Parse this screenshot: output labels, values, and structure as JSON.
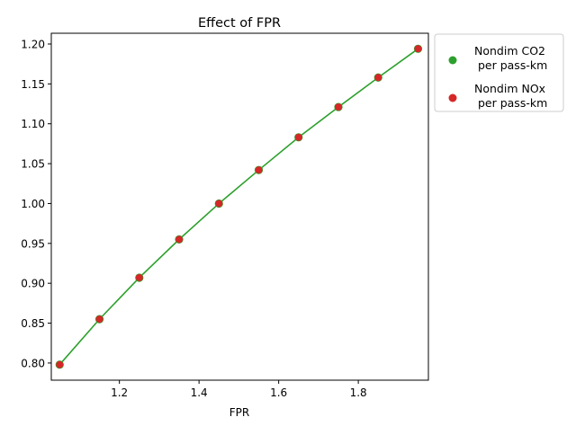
{
  "chart_data": {
    "type": "line",
    "title": "Effect of FPR",
    "xlabel": "FPR",
    "ylabel": "",
    "xlim": [
      1.029,
      1.976
    ],
    "ylim": [
      0.7785,
      1.2135
    ],
    "xticks": [
      1.2,
      1.4,
      1.6,
      1.8
    ],
    "xtick_labels": [
      "1.2",
      "1.4",
      "1.6",
      "1.8"
    ],
    "yticks": [
      0.8,
      0.85,
      0.9,
      0.95,
      1.0,
      1.05,
      1.1,
      1.15,
      1.2
    ],
    "ytick_labels": [
      "0.80",
      "0.85",
      "0.90",
      "0.95",
      "1.00",
      "1.05",
      "1.10",
      "1.15",
      "1.20"
    ],
    "grid": false,
    "legend_position": "outside right, top",
    "x": [
      1.05,
      1.15,
      1.25,
      1.35,
      1.45,
      1.55,
      1.65,
      1.75,
      1.85,
      1.95
    ],
    "series": [
      {
        "name": "Nondim CO2\n per pass-km",
        "legend_lines": [
          "Nondim CO2",
          " per pass-km"
        ],
        "color": "#2ca02c",
        "style": "line+markers",
        "values": [
          0.798,
          0.855,
          0.907,
          0.955,
          1.0,
          1.042,
          1.083,
          1.121,
          1.158,
          1.194
        ]
      },
      {
        "name": "Nondim NOx\n per pass-km",
        "legend_lines": [
          "Nondim NOx",
          " per pass-km"
        ],
        "color": "#d62728",
        "style": "markers",
        "values": [
          0.798,
          0.855,
          0.907,
          0.955,
          1.0,
          1.042,
          1.083,
          1.121,
          1.158,
          1.194
        ]
      }
    ]
  }
}
